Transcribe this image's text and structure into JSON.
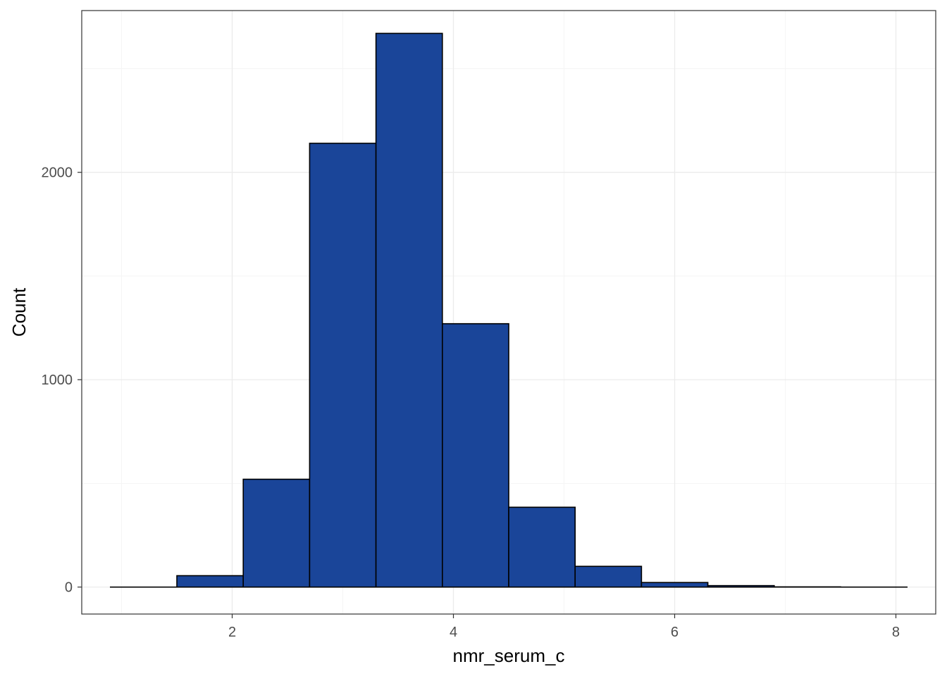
{
  "chart_data": {
    "type": "bar",
    "title": "",
    "xlabel": "nmr_serum_c",
    "ylabel": "Count",
    "xlim": [
      0.64,
      8.36
    ],
    "ylim": [
      -130,
      2780
    ],
    "x_ticks": [
      2,
      4,
      6,
      8
    ],
    "y_ticks": [
      0,
      1000,
      2000
    ],
    "x_tick_labels": [
      "2",
      "4",
      "6",
      "8"
    ],
    "y_tick_labels": [
      "0",
      "1000",
      "2000"
    ],
    "bins": [
      {
        "x0": 0.9,
        "x1": 1.5,
        "count": 0
      },
      {
        "x0": 1.5,
        "x1": 2.1,
        "count": 55
      },
      {
        "x0": 2.1,
        "x1": 2.7,
        "count": 520
      },
      {
        "x0": 2.7,
        "x1": 3.3,
        "count": 2140
      },
      {
        "x0": 3.3,
        "x1": 3.9,
        "count": 2670
      },
      {
        "x0": 3.9,
        "x1": 4.5,
        "count": 1270
      },
      {
        "x0": 4.5,
        "x1": 5.1,
        "count": 385
      },
      {
        "x0": 5.1,
        "x1": 5.7,
        "count": 100
      },
      {
        "x0": 5.7,
        "x1": 6.3,
        "count": 22
      },
      {
        "x0": 6.3,
        "x1": 6.9,
        "count": 7
      },
      {
        "x0": 6.9,
        "x1": 7.5,
        "count": 1
      },
      {
        "x0": 7.5,
        "x1": 8.1,
        "count": 0
      }
    ],
    "bar_fill": "#1a4599",
    "bar_outline": "#000000",
    "grid": true,
    "grid_major_color": "#ebebeb",
    "grid_minor_color": "#f5f5f5",
    "panel_border_color": "#333333",
    "legend": "none"
  }
}
